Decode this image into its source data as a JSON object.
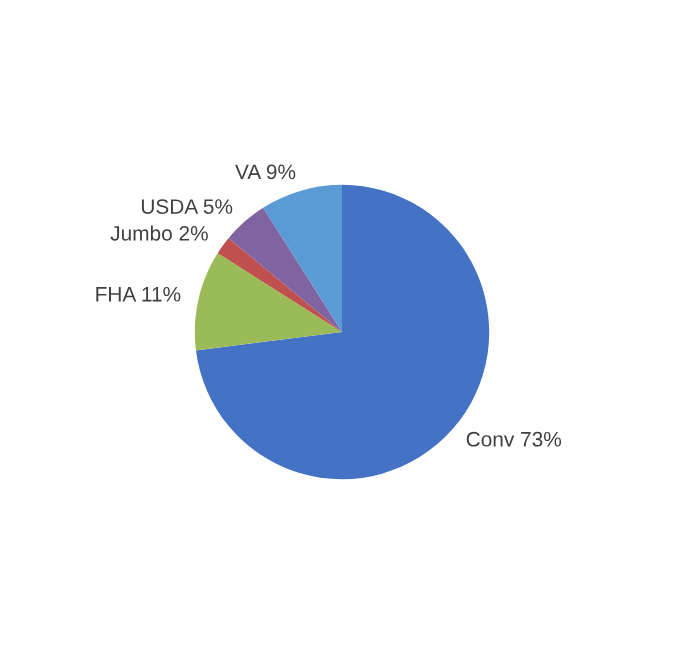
{
  "chart_data": {
    "type": "pie",
    "categories": [
      "Conv",
      "FHA",
      "Jumbo",
      "USDA",
      "VA"
    ],
    "values": [
      73,
      11,
      2,
      5,
      9
    ],
    "value_labels": [
      "73%",
      "11%",
      "2%",
      "5%",
      "9%"
    ],
    "colors": [
      "#4472c4",
      "#9bbb59",
      "#c0504d",
      "#8064a2",
      "#5b9bd5"
    ],
    "legend": false
  }
}
